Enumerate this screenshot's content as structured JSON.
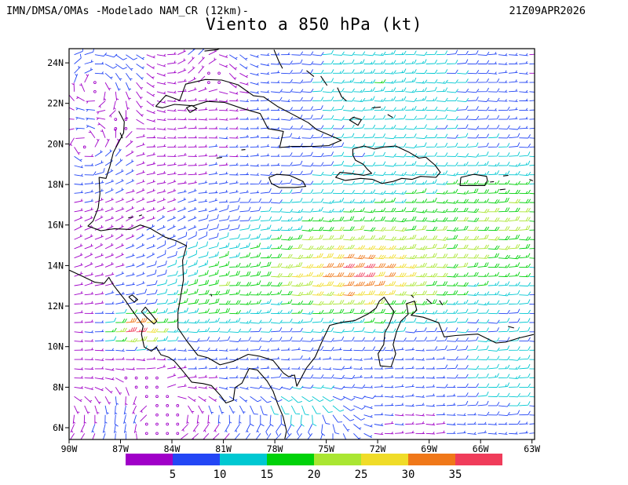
{
  "header": {
    "left": "IMN/DMSA/OMAs -Modelado NAM_CR (12km)-",
    "right": "21Z09APR2026",
    "title": "Viento a 850 hPa (kt)"
  },
  "axes": {
    "lat_ticks": [
      {
        "label": "24N",
        "value": 24
      },
      {
        "label": "22N",
        "value": 22
      },
      {
        "label": "20N",
        "value": 20
      },
      {
        "label": "18N",
        "value": 18
      },
      {
        "label": "16N",
        "value": 16
      },
      {
        "label": "14N",
        "value": 14
      },
      {
        "label": "12N",
        "value": 12
      },
      {
        "label": "10N",
        "value": 10
      },
      {
        "label": "8N",
        "value": 8
      },
      {
        "label": "6N",
        "value": 6
      }
    ],
    "lon_ticks": [
      {
        "label": "90W",
        "value": 90
      },
      {
        "label": "87W",
        "value": 87
      },
      {
        "label": "84W",
        "value": 84
      },
      {
        "label": "81W",
        "value": 81
      },
      {
        "label": "78W",
        "value": 78
      },
      {
        "label": "75W",
        "value": 75
      },
      {
        "label": "72W",
        "value": 72
      },
      {
        "label": "69W",
        "value": 69
      },
      {
        "label": "66W",
        "value": 66
      },
      {
        "label": "63W",
        "value": 63
      }
    ]
  },
  "colorbar": {
    "values": [
      5,
      10,
      15,
      20,
      25,
      30,
      35
    ],
    "colors": [
      "#A000C8",
      "#2346F5",
      "#00C8D2",
      "#00D20A",
      "#AAE632",
      "#F0DC28",
      "#F07819",
      "#F03C5A"
    ]
  },
  "chart_data": {
    "type": "wind_barb_map",
    "title": "Viento a 850 hPa (kt)",
    "level_hpa": 850,
    "units": "kt",
    "model_label": "IMN/DMSA/OMAs -Modelado NAM_CR (12km)-",
    "valid_time": "21Z09APR2026",
    "extent": {
      "lon_west": 90.0,
      "lon_east": 62.85,
      "lat_south": 5.42,
      "lat_north": 24.7
    },
    "speed_bins_kt": [
      5,
      10,
      15,
      20,
      25,
      30,
      35
    ],
    "bin_colors": [
      "#A000C8",
      "#2346F5",
      "#00C8D2",
      "#00D20A",
      "#AAE632",
      "#F0DC28",
      "#F07819",
      "#F03C5A"
    ],
    "grid": {
      "cols": 45,
      "rows": 42,
      "margin_deg": 0.3
    },
    "wind_field": {
      "base_speed_kt": 3.5,
      "prevailing_from_deg": 90,
      "speed_maxima": [
        {
          "name": "broad-trade-maximum",
          "lat": 17.0,
          "lon": 70.0,
          "amp": 9,
          "rlat": 4.2,
          "rlon": 9.0
        },
        {
          "name": "caribbean-low-level-jet",
          "lat": 13.5,
          "lon": 74.0,
          "amp": 16,
          "rlat": 2.8,
          "rlon": 8.0
        },
        {
          "name": "caribbean-jet-core",
          "lat": 13.4,
          "lon": 73.5,
          "amp": 11,
          "rlat": 1.6,
          "rlon": 3.5
        },
        {
          "name": "papagayo-jet",
          "lat": 10.8,
          "lon": 86.3,
          "amp": 33,
          "rlat": 0.75,
          "rlon": 1.5
        },
        {
          "name": "bahamas-atlantic-maximum",
          "lat": 23.5,
          "lon": 72.0,
          "amp": 10,
          "rlat": 3.0,
          "rlon": 6.0
        },
        {
          "name": "nicaragua-coast-maximum",
          "lat": 12.2,
          "lon": 82.5,
          "amp": 10,
          "rlat": 2.2,
          "rlon": 3.0
        },
        {
          "name": "east-antilles-band",
          "lat": 16.0,
          "lon": 64.0,
          "amp": 10,
          "rlat": 3.0,
          "rlon": 4.0
        },
        {
          "name": "venezuela-maximum",
          "lat": 8.5,
          "lon": 64.5,
          "amp": 9,
          "rlat": 2.5,
          "rlon": 4.0
        },
        {
          "name": "colombia-bight",
          "lat": 7.2,
          "lon": 76.5,
          "amp": 8,
          "rlat": 1.8,
          "rlon": 4.0
        }
      ],
      "vortices": [
        {
          "name": "gulf-of-mexico-eddy",
          "lat": 23.2,
          "lon": 88.6,
          "r": 2.2,
          "amp": 5.0,
          "rotation": "ccw"
        },
        {
          "name": "campeche-eddy",
          "lat": 19.8,
          "lon": 89.0,
          "r": 1.8,
          "amp": 4.0,
          "rotation": "cw"
        },
        {
          "name": "florida-strait-eddy",
          "lat": 24.4,
          "lon": 81.5,
          "r": 1.6,
          "amp": 3.0,
          "rotation": "ccw"
        },
        {
          "name": "east-pacific-itcz-eddy",
          "lat": 6.3,
          "lon": 85.8,
          "r": 1.8,
          "amp": 3.5,
          "rotation": "cw"
        }
      ],
      "northeast_turning": {
        "lon_east_of": 78,
        "lon_span": 6,
        "lat_from": 11,
        "lat_to": 20,
        "lat_span": 4,
        "max_turn_deg": -25
      },
      "southwest_monsoon": {
        "lat_below": 8.2,
        "lat_span": 2.2,
        "lon_west_of": 72,
        "lon_span": 4,
        "turn_deg": 130
      }
    },
    "map_paths": {
      "yucatan_central_america_caribbean_coast": [
        [
          87.1,
          21.62
        ],
        [
          86.78,
          21.1
        ],
        [
          86.82,
          20.55
        ],
        [
          87.42,
          19.58
        ],
        [
          87.62,
          18.9
        ],
        [
          87.85,
          18.3
        ],
        [
          88.25,
          18.35
        ],
        [
          88.2,
          17.55
        ],
        [
          88.3,
          16.85
        ],
        [
          88.6,
          16.2
        ],
        [
          88.9,
          15.95
        ],
        [
          88.15,
          15.72
        ],
        [
          87.35,
          15.82
        ],
        [
          86.45,
          15.78
        ],
        [
          85.85,
          16.0
        ],
        [
          85.3,
          15.85
        ],
        [
          84.4,
          15.4
        ],
        [
          83.75,
          15.22
        ],
        [
          83.15,
          14.98
        ],
        [
          83.38,
          14.25
        ],
        [
          83.33,
          13.3
        ],
        [
          83.5,
          12.45
        ],
        [
          83.65,
          11.7
        ],
        [
          83.65,
          10.92
        ],
        [
          83.15,
          10.3
        ],
        [
          82.5,
          9.58
        ],
        [
          81.9,
          9.45
        ],
        [
          81.2,
          9.1
        ],
        [
          80.4,
          9.28
        ],
        [
          79.55,
          9.62
        ],
        [
          78.85,
          9.52
        ],
        [
          78.1,
          9.32
        ],
        [
          77.5,
          8.7
        ],
        [
          77.2,
          8.52
        ],
        [
          76.85,
          8.6
        ],
        [
          76.72,
          8.05
        ],
        [
          76.5,
          8.4
        ],
        [
          76.15,
          8.95
        ],
        [
          75.65,
          9.48
        ],
        [
          75.2,
          10.35
        ],
        [
          74.8,
          11.05
        ],
        [
          74.1,
          11.2
        ],
        [
          73.35,
          11.28
        ],
        [
          72.55,
          11.62
        ],
        [
          72.1,
          11.9
        ],
        [
          71.9,
          12.25
        ],
        [
          71.62,
          12.44
        ],
        [
          71.32,
          12.05
        ],
        [
          71.05,
          11.72
        ],
        [
          71.35,
          11.05
        ],
        [
          71.58,
          10.7
        ],
        [
          71.65,
          10.1
        ],
        [
          71.98,
          9.65
        ],
        [
          71.85,
          9.05
        ],
        [
          71.22,
          9.0
        ],
        [
          70.95,
          9.65
        ],
        [
          71.1,
          10.1
        ],
        [
          70.9,
          10.75
        ],
        [
          70.65,
          11.25
        ],
        [
          70.22,
          11.6
        ],
        [
          70.32,
          12.12
        ],
        [
          69.85,
          12.25
        ],
        [
          69.72,
          11.8
        ],
        [
          70.05,
          11.55
        ],
        [
          69.35,
          11.45
        ],
        [
          68.45,
          11.18
        ],
        [
          68.12,
          10.48
        ],
        [
          67.45,
          10.55
        ],
        [
          66.15,
          10.62
        ],
        [
          65.1,
          10.18
        ],
        [
          64.55,
          10.22
        ],
        [
          63.8,
          10.42
        ],
        [
          62.9,
          10.6
        ]
      ],
      "central_america_pacific_coast": [
        [
          90.0,
          13.78
        ],
        [
          89.25,
          13.48
        ],
        [
          88.5,
          13.18
        ],
        [
          87.95,
          13.12
        ],
        [
          87.68,
          13.42
        ],
        [
          87.45,
          13.08
        ],
        [
          87.2,
          12.8
        ],
        [
          86.75,
          12.32
        ],
        [
          86.35,
          11.82
        ],
        [
          85.95,
          11.35
        ],
        [
          85.68,
          11.02
        ],
        [
          85.78,
          10.62
        ],
        [
          85.62,
          9.98
        ],
        [
          85.2,
          9.78
        ],
        [
          84.92,
          9.98
        ],
        [
          84.65,
          9.6
        ],
        [
          84.2,
          9.48
        ],
        [
          83.85,
          9.28
        ],
        [
          83.55,
          8.98
        ],
        [
          83.25,
          8.68
        ],
        [
          82.85,
          8.25
        ],
        [
          82.2,
          8.18
        ],
        [
          81.7,
          8.08
        ],
        [
          81.2,
          7.62
        ],
        [
          80.85,
          7.22
        ],
        [
          80.42,
          7.35
        ],
        [
          80.32,
          7.98
        ],
        [
          79.92,
          8.2
        ],
        [
          79.5,
          8.92
        ],
        [
          79.02,
          8.85
        ],
        [
          78.45,
          8.3
        ],
        [
          78.1,
          7.8
        ],
        [
          77.82,
          7.15
        ],
        [
          77.52,
          6.55
        ],
        [
          77.32,
          5.85
        ],
        [
          77.42,
          5.45
        ]
      ],
      "cuba": [
        [
          84.95,
          21.85
        ],
        [
          84.35,
          22.4
        ],
        [
          83.55,
          22.15
        ],
        [
          83.2,
          22.95
        ],
        [
          82.05,
          23.18
        ],
        [
          81.1,
          23.15
        ],
        [
          80.15,
          22.92
        ],
        [
          79.25,
          22.38
        ],
        [
          78.65,
          22.32
        ],
        [
          77.85,
          21.85
        ],
        [
          77.05,
          21.5
        ],
        [
          76.05,
          21.05
        ],
        [
          75.55,
          20.7
        ],
        [
          74.5,
          20.32
        ],
        [
          74.12,
          20.18
        ],
        [
          74.85,
          19.92
        ],
        [
          75.7,
          19.88
        ],
        [
          77.0,
          19.88
        ],
        [
          77.72,
          19.82
        ],
        [
          77.5,
          20.62
        ],
        [
          78.4,
          20.75
        ],
        [
          78.85,
          21.5
        ],
        [
          79.9,
          21.75
        ],
        [
          80.95,
          22.05
        ],
        [
          81.95,
          22.1
        ],
        [
          82.75,
          21.88
        ],
        [
          83.85,
          21.95
        ],
        [
          84.55,
          21.78
        ],
        [
          84.95,
          21.85
        ]
      ],
      "hispaniola": [
        [
          73.45,
          19.75
        ],
        [
          72.8,
          19.9
        ],
        [
          72.2,
          19.75
        ],
        [
          71.65,
          19.85
        ],
        [
          70.95,
          19.9
        ],
        [
          70.2,
          19.6
        ],
        [
          69.6,
          19.3
        ],
        [
          69.2,
          19.35
        ],
        [
          68.65,
          18.95
        ],
        [
          68.35,
          18.6
        ],
        [
          68.6,
          18.35
        ],
        [
          69.5,
          18.4
        ],
        [
          70.0,
          18.25
        ],
        [
          70.6,
          18.3
        ],
        [
          71.1,
          18.15
        ],
        [
          71.75,
          18.05
        ],
        [
          72.3,
          18.25
        ],
        [
          73.0,
          18.3
        ],
        [
          73.9,
          18.2
        ],
        [
          74.45,
          18.35
        ],
        [
          74.2,
          18.6
        ],
        [
          73.6,
          18.55
        ],
        [
          72.8,
          18.45
        ],
        [
          72.35,
          18.55
        ],
        [
          72.6,
          18.75
        ],
        [
          72.85,
          19.0
        ],
        [
          73.3,
          19.2
        ],
        [
          73.45,
          19.45
        ],
        [
          73.45,
          19.75
        ]
      ],
      "jamaica": [
        [
          78.35,
          18.35
        ],
        [
          77.9,
          18.5
        ],
        [
          77.15,
          18.45
        ],
        [
          76.35,
          18.15
        ],
        [
          76.2,
          17.9
        ],
        [
          76.85,
          17.85
        ],
        [
          77.75,
          17.85
        ],
        [
          78.2,
          18.05
        ],
        [
          78.35,
          18.35
        ]
      ],
      "puerto_rico": [
        [
          67.15,
          18.35
        ],
        [
          66.4,
          18.5
        ],
        [
          65.65,
          18.4
        ],
        [
          65.6,
          18.2
        ],
        [
          65.75,
          17.95
        ],
        [
          66.6,
          17.95
        ],
        [
          67.2,
          17.95
        ],
        [
          67.15,
          18.35
        ]
      ],
      "lake_nicaragua": [
        [
          85.78,
          11.72
        ],
        [
          85.45,
          11.42
        ],
        [
          85.05,
          11.12
        ],
        [
          84.88,
          11.25
        ],
        [
          85.2,
          11.6
        ],
        [
          85.55,
          11.95
        ],
        [
          85.78,
          11.72
        ]
      ],
      "lake_managua": [
        [
          86.52,
          12.45
        ],
        [
          86.2,
          12.2
        ],
        [
          86.0,
          12.32
        ],
        [
          86.32,
          12.55
        ],
        [
          86.52,
          12.45
        ]
      ],
      "small_islands": [
        [
          [
            82.95,
            21.55
          ],
          [
            82.55,
            21.75
          ],
          [
            82.85,
            21.9
          ],
          [
            83.15,
            21.78
          ],
          [
            82.95,
            21.55
          ]
        ],
        [
          [
            78.05,
            24.65
          ],
          [
            77.78,
            24.1
          ],
          [
            77.55,
            23.72
          ]
        ],
        [
          [
            76.15,
            23.62
          ],
          [
            75.72,
            23.32
          ]
        ],
        [
          [
            75.32,
            23.35
          ],
          [
            74.95,
            22.88
          ]
        ],
        [
          [
            74.35,
            22.78
          ],
          [
            74.1,
            22.32
          ],
          [
            73.82,
            22.12
          ]
        ],
        [
          [
            73.65,
            21.18
          ],
          [
            73.15,
            20.92
          ],
          [
            72.95,
            21.2
          ],
          [
            73.42,
            21.32
          ],
          [
            73.65,
            21.18
          ]
        ],
        [
          [
            72.32,
            21.78
          ],
          [
            71.82,
            21.82
          ]
        ],
        [
          [
            71.42,
            21.45
          ],
          [
            71.12,
            21.3
          ]
        ],
        [
          [
            81.4,
            19.3
          ],
          [
            81.08,
            19.34
          ]
        ],
        [
          [
            79.95,
            19.7
          ],
          [
            79.72,
            19.72
          ]
        ],
        [
          [
            87.02,
            20.55
          ],
          [
            86.88,
            20.28
          ]
        ],
        [
          [
            86.55,
            16.35
          ],
          [
            86.28,
            16.4
          ]
        ],
        [
          [
            85.92,
            16.45
          ],
          [
            85.75,
            16.5
          ]
        ],
        [
          [
            82.1,
            24.58
          ],
          [
            81.35,
            24.65
          ],
          [
            80.75,
            24.9
          ]
        ],
        [
          [
            64.88,
            17.74
          ],
          [
            64.55,
            17.77
          ]
        ],
        [
          [
            65.45,
            18.12
          ],
          [
            65.22,
            18.14
          ]
        ],
        [
          [
            64.68,
            18.42
          ],
          [
            64.38,
            18.45
          ]
        ],
        [
          [
            63.15,
            18.25
          ],
          [
            62.95,
            18.18
          ]
        ],
        [
          [
            70.05,
            12.55
          ],
          [
            69.9,
            12.42
          ]
        ],
        [
          [
            69.15,
            12.35
          ],
          [
            68.85,
            12.12
          ]
        ],
        [
          [
            68.4,
            12.28
          ],
          [
            68.22,
            12.05
          ]
        ],
        [
          [
            64.4,
            11.0
          ],
          [
            64.05,
            10.92
          ]
        ],
        [
          [
            81.73,
            12.6
          ],
          [
            81.68,
            12.48
          ]
        ]
      ]
    }
  }
}
